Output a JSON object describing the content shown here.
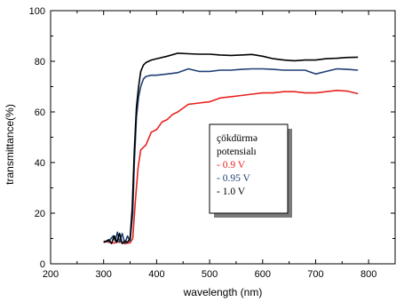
{
  "chart_data": {
    "type": "line",
    "title": "",
    "xlabel": "wavelength (nm)",
    "ylabel": "transmittance(%)",
    "xlim": [
      200,
      850
    ],
    "ylim": [
      0,
      100
    ],
    "xticks": [
      200,
      300,
      400,
      500,
      600,
      700,
      800
    ],
    "yticks": [
      0,
      20,
      40,
      60,
      80,
      100
    ],
    "grid": false,
    "legend": {
      "placement": "center-right",
      "title_lines": [
        "çökdürmə",
        "potensialı"
      ]
    },
    "series": [
      {
        "name": "- 0.9 V",
        "color": "#e8231f",
        "points": [
          [
            300,
            9.0
          ],
          [
            310,
            8.5
          ],
          [
            320,
            8.2
          ],
          [
            330,
            8.8
          ],
          [
            340,
            8.0
          ],
          [
            350,
            8.3
          ],
          [
            355,
            10
          ],
          [
            360,
            25
          ],
          [
            365,
            38
          ],
          [
            370,
            45
          ],
          [
            380,
            47
          ],
          [
            390,
            52
          ],
          [
            400,
            53
          ],
          [
            410,
            56
          ],
          [
            420,
            57
          ],
          [
            430,
            59
          ],
          [
            440,
            60
          ],
          [
            460,
            63
          ],
          [
            480,
            63.5
          ],
          [
            500,
            64
          ],
          [
            520,
            65.5
          ],
          [
            540,
            66
          ],
          [
            560,
            66.5
          ],
          [
            580,
            67
          ],
          [
            600,
            67.5
          ],
          [
            620,
            67.5
          ],
          [
            640,
            68
          ],
          [
            660,
            68
          ],
          [
            680,
            67.5
          ],
          [
            700,
            67.5
          ],
          [
            720,
            68
          ],
          [
            740,
            68.5
          ],
          [
            760,
            68.2
          ],
          [
            780,
            67.2
          ]
        ]
      },
      {
        "name": "- 0.95 V",
        "color": "#1f3f73",
        "points": [
          [
            300,
            8.5
          ],
          [
            310,
            9.0
          ],
          [
            318,
            11
          ],
          [
            322,
            9
          ],
          [
            326,
            12.5
          ],
          [
            330,
            8.5
          ],
          [
            335,
            12
          ],
          [
            340,
            8
          ],
          [
            345,
            11
          ],
          [
            350,
            9
          ],
          [
            355,
            20
          ],
          [
            358,
            40
          ],
          [
            362,
            58
          ],
          [
            366,
            66
          ],
          [
            370,
            70
          ],
          [
            375,
            73
          ],
          [
            380,
            74
          ],
          [
            390,
            74.5
          ],
          [
            400,
            74.5
          ],
          [
            420,
            75
          ],
          [
            440,
            75.5
          ],
          [
            460,
            77
          ],
          [
            480,
            76
          ],
          [
            500,
            76
          ],
          [
            520,
            76.5
          ],
          [
            540,
            76.5
          ],
          [
            560,
            76.8
          ],
          [
            580,
            77
          ],
          [
            600,
            77
          ],
          [
            620,
            76.8
          ],
          [
            640,
            76.5
          ],
          [
            660,
            76.5
          ],
          [
            680,
            76.5
          ],
          [
            700,
            75
          ],
          [
            720,
            76
          ],
          [
            740,
            77
          ],
          [
            760,
            76.8
          ],
          [
            780,
            76.5
          ]
        ]
      },
      {
        "name": "- 1.0 V",
        "color": "#000000",
        "points": [
          [
            300,
            8.5
          ],
          [
            310,
            9.5
          ],
          [
            315,
            8
          ],
          [
            320,
            11
          ],
          [
            325,
            8.5
          ],
          [
            330,
            12
          ],
          [
            335,
            8
          ],
          [
            340,
            9
          ],
          [
            345,
            8.5
          ],
          [
            350,
            10
          ],
          [
            354,
            22
          ],
          [
            358,
            45
          ],
          [
            362,
            62
          ],
          [
            366,
            70
          ],
          [
            370,
            76
          ],
          [
            375,
            78.5
          ],
          [
            380,
            79.5
          ],
          [
            390,
            80.5
          ],
          [
            400,
            81
          ],
          [
            420,
            82
          ],
          [
            440,
            83.2
          ],
          [
            460,
            83
          ],
          [
            480,
            82.8
          ],
          [
            500,
            82.8
          ],
          [
            520,
            82.5
          ],
          [
            540,
            82.3
          ],
          [
            560,
            82.5
          ],
          [
            580,
            82.7
          ],
          [
            600,
            82
          ],
          [
            620,
            81
          ],
          [
            640,
            80.5
          ],
          [
            660,
            80.2
          ],
          [
            680,
            80.5
          ],
          [
            700,
            80.5
          ],
          [
            720,
            81
          ],
          [
            740,
            81.2
          ],
          [
            760,
            81.5
          ],
          [
            780,
            81.6
          ]
        ]
      }
    ]
  }
}
